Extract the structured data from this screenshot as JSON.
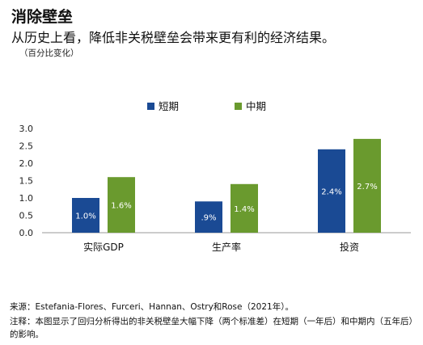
{
  "header": {
    "title": "消除壁垒",
    "subtitle": "从历史上看，降低非关税壁垒会带来更有利的经济结果。",
    "unit": "（百分比变化）"
  },
  "chart_data": {
    "type": "bar",
    "categories": [
      "实际GDP",
      "生产率",
      "投资"
    ],
    "series": [
      {
        "name": "短期",
        "color": "#1a4a94",
        "values": [
          1.0,
          0.9,
          2.4
        ],
        "labels": [
          "1.0%",
          ".9%",
          "2.4%"
        ]
      },
      {
        "name": "中期",
        "color": "#6a9a2e",
        "values": [
          1.6,
          1.4,
          2.7
        ],
        "labels": [
          "1.6%",
          "1.4%",
          "2.7%"
        ]
      }
    ],
    "ylim": [
      0,
      3.0
    ],
    "yticks": [
      "0.0",
      "0.5",
      "1.0",
      "1.5",
      "2.0",
      "2.5",
      "3.0"
    ],
    "legend_position": "top",
    "grid": false
  },
  "footer": {
    "source": "来源：Estefania-Flores、Furceri、Hannan、Ostry和Rose（2021年）。",
    "note": "注释：本图显示了回归分析得出的非关税壁垒大幅下降（两个标准差）在短期（一年后）和中期内（五年后）的影响。"
  }
}
